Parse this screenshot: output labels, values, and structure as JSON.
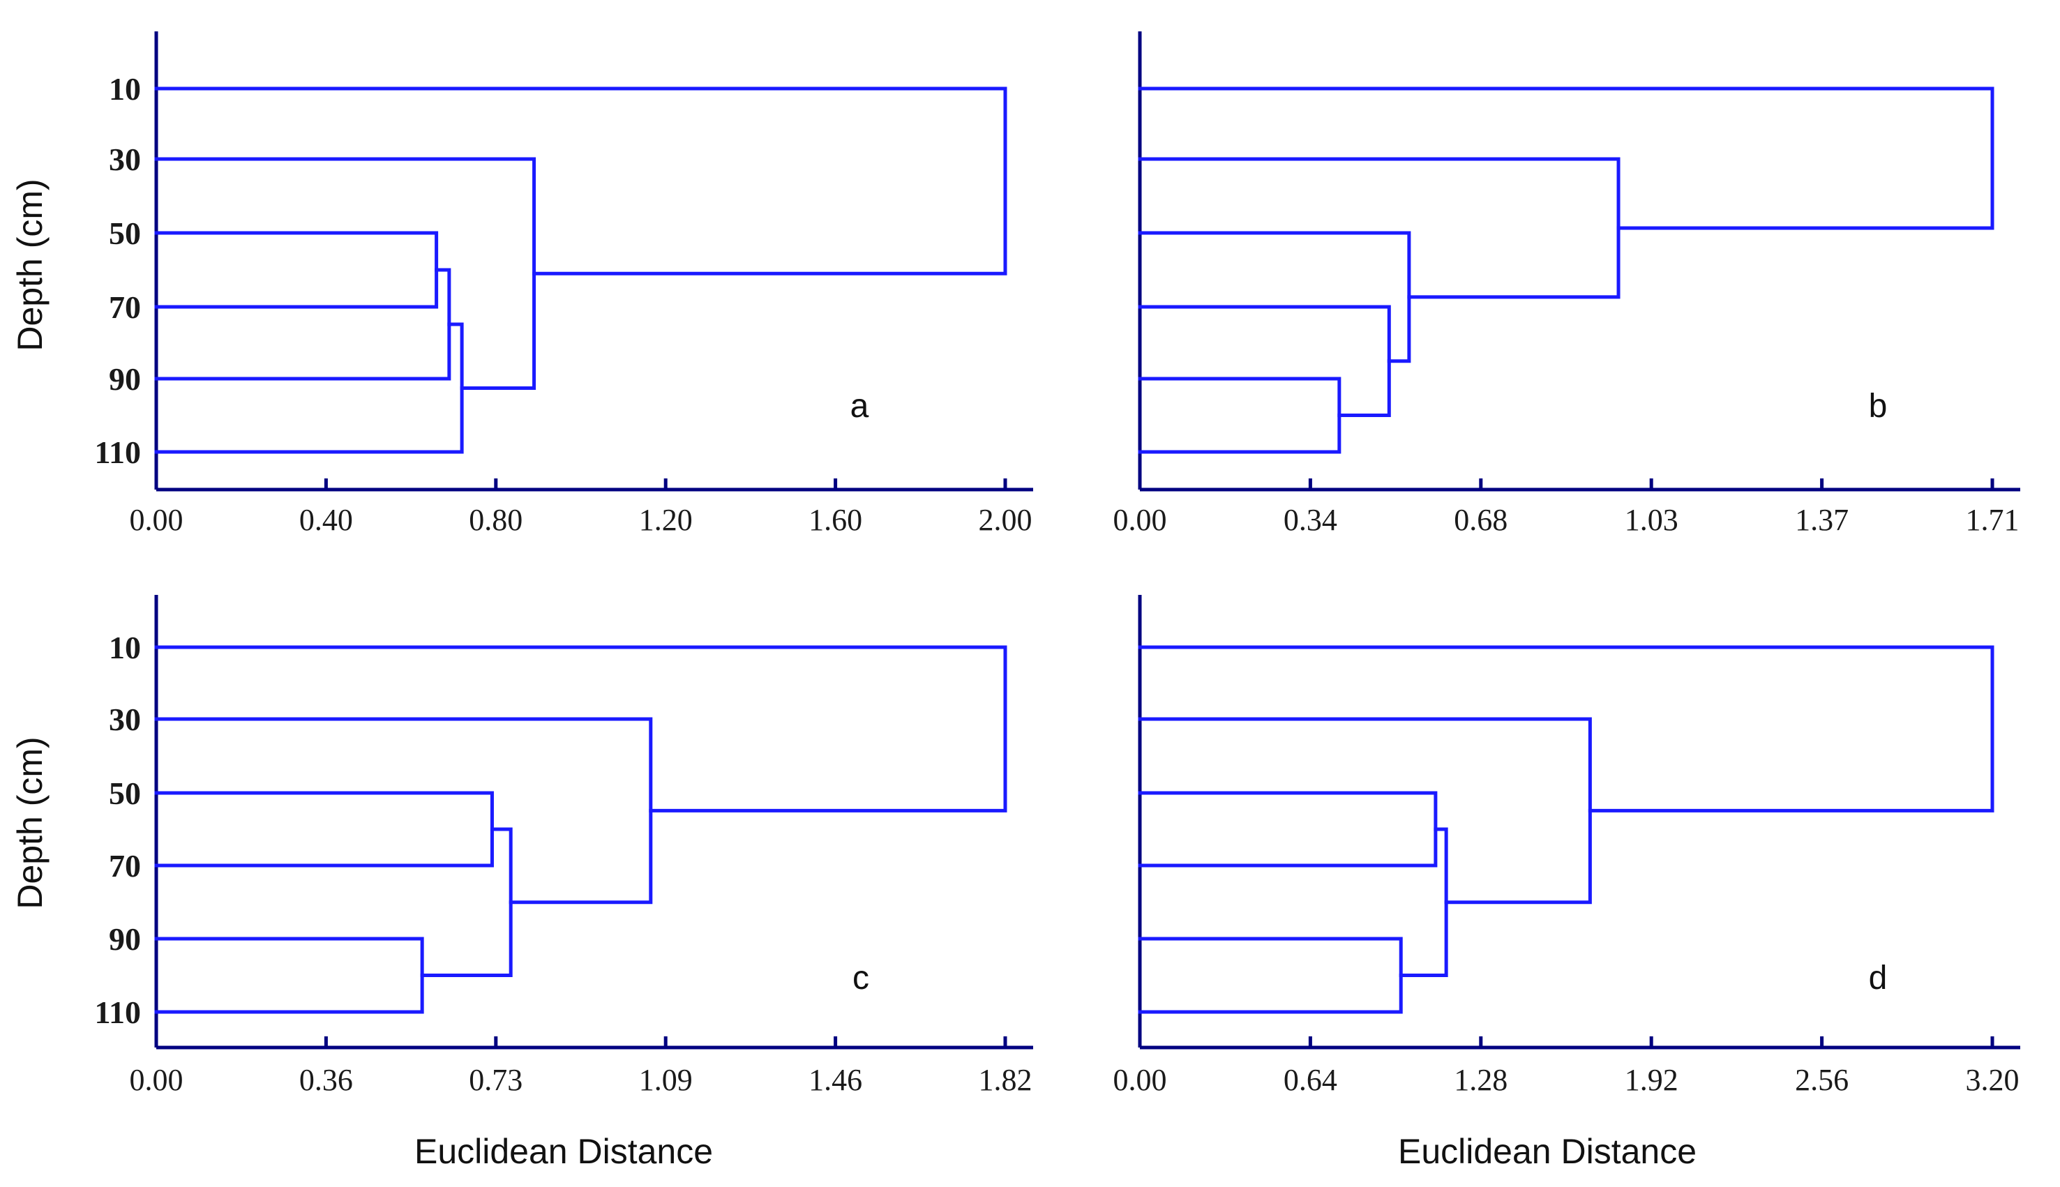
{
  "chart_data": [
    {
      "type": "dendrogram",
      "panel_label": "a",
      "ylabel": "Depth (cm)",
      "xlabel": "",
      "leaves": [
        "10",
        "30",
        "50",
        "70",
        "90",
        "110"
      ],
      "x_ticks": [
        "0.00",
        "0.40",
        "0.80",
        "1.20",
        "1.60",
        "2.00"
      ],
      "xlim": [
        0,
        2.0
      ],
      "merges": [
        {
          "a": "L2",
          "b": "L3",
          "height": 0.66
        },
        {
          "a": "N0",
          "b": "L4",
          "height": 0.69
        },
        {
          "a": "N1",
          "b": "L5",
          "height": 0.72
        },
        {
          "a": "L1",
          "b": "N2",
          "height": 0.89
        },
        {
          "a": "L0",
          "b": "N3",
          "height": 2.0
        }
      ]
    },
    {
      "type": "dendrogram",
      "panel_label": "b",
      "ylabel": "",
      "xlabel": "",
      "leaves": [
        "10",
        "30",
        "50",
        "70",
        "90",
        "110"
      ],
      "x_ticks": [
        "0.00",
        "0.34",
        "0.68",
        "1.03",
        "1.37",
        "1.71"
      ],
      "xlim": [
        0,
        1.71
      ],
      "merges": [
        {
          "a": "L4",
          "b": "L5",
          "height": 0.4
        },
        {
          "a": "L3",
          "b": "N0",
          "height": 0.5
        },
        {
          "a": "L2",
          "b": "N1",
          "height": 0.54
        },
        {
          "a": "L1",
          "b": "N2",
          "height": 0.96
        },
        {
          "a": "L0",
          "b": "N3",
          "height": 1.71
        }
      ]
    },
    {
      "type": "dendrogram",
      "panel_label": "c",
      "ylabel": "Depth (cm)",
      "xlabel": "Euclidean Distance",
      "leaves": [
        "10",
        "30",
        "50",
        "70",
        "90",
        "110"
      ],
      "x_ticks": [
        "0.00",
        "0.36",
        "0.73",
        "1.09",
        "1.46",
        "1.82"
      ],
      "xlim": [
        0,
        1.82
      ],
      "merges": [
        {
          "a": "L4",
          "b": "L5",
          "height": 0.57
        },
        {
          "a": "L2",
          "b": "L3",
          "height": 0.72
        },
        {
          "a": "N1",
          "b": "N0",
          "height": 0.76
        },
        {
          "a": "L1",
          "b": "N2",
          "height": 1.06
        },
        {
          "a": "L0",
          "b": "N3",
          "height": 1.82
        }
      ]
    },
    {
      "type": "dendrogram",
      "panel_label": "d",
      "ylabel": "",
      "xlabel": "Euclidean Distance",
      "leaves": [
        "10",
        "30",
        "50",
        "70",
        "90",
        "110"
      ],
      "x_ticks": [
        "0.00",
        "0.64",
        "1.28",
        "1.92",
        "2.56",
        "3.20"
      ],
      "xlim": [
        0,
        3.2
      ],
      "merges": [
        {
          "a": "L4",
          "b": "L5",
          "height": 0.98
        },
        {
          "a": "L2",
          "b": "L3",
          "height": 1.11
        },
        {
          "a": "N1",
          "b": "N0",
          "height": 1.15
        },
        {
          "a": "L1",
          "b": "N2",
          "height": 1.69
        },
        {
          "a": "L0",
          "b": "N3",
          "height": 3.2
        }
      ]
    }
  ],
  "colors": {
    "line": "#1a1aff",
    "axis": "#000080"
  }
}
